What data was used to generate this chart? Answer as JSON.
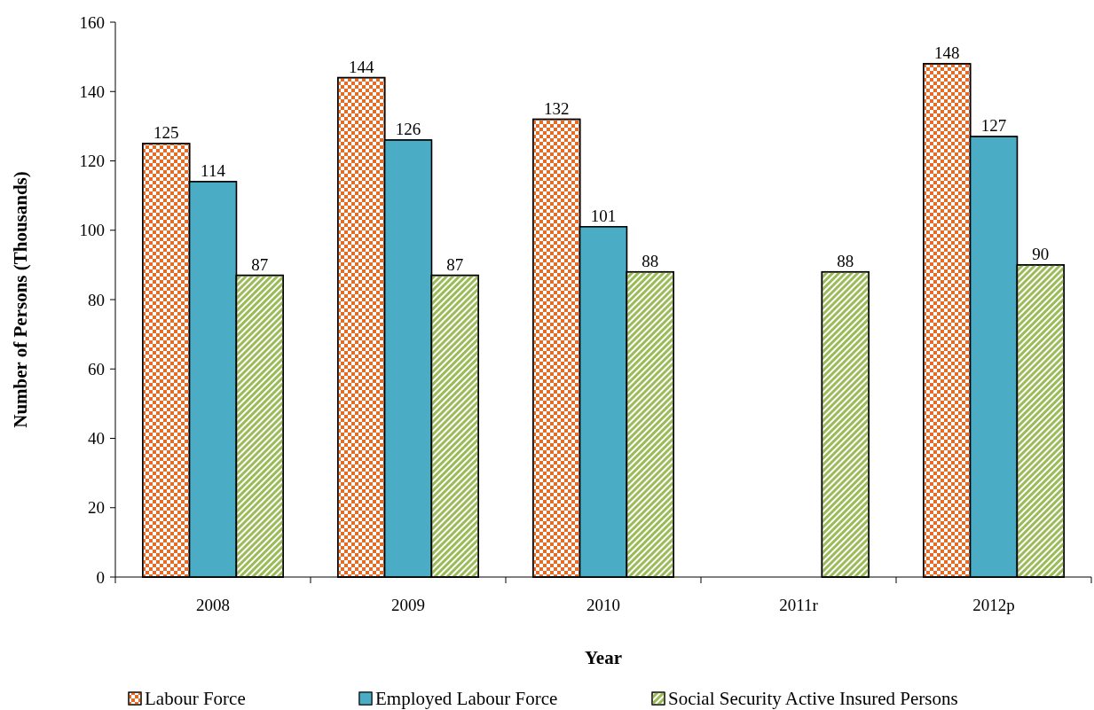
{
  "chart_data": {
    "type": "bar",
    "xlabel": "Year",
    "ylabel": "Number of Persons (Thousands)",
    "categories": [
      "2008",
      "2009",
      "2010",
      "2011r",
      "2012p"
    ],
    "series": [
      {
        "name": "Labour Force",
        "color": "#e46c26",
        "values": [
          125,
          144,
          132,
          null,
          148
        ]
      },
      {
        "name": "Employed Labour Force",
        "color": "#4bacc6",
        "values": [
          114,
          126,
          101,
          null,
          127
        ]
      },
      {
        "name": "Social Security Active Insured Persons",
        "color": "#9bbb59",
        "values": [
          87,
          87,
          88,
          88,
          90
        ]
      }
    ],
    "ylim": [
      0,
      160
    ],
    "yticks": [
      0,
      20,
      40,
      60,
      80,
      100,
      120,
      140,
      160
    ],
    "data_labels": true,
    "legend": "bottom",
    "grid": false
  }
}
